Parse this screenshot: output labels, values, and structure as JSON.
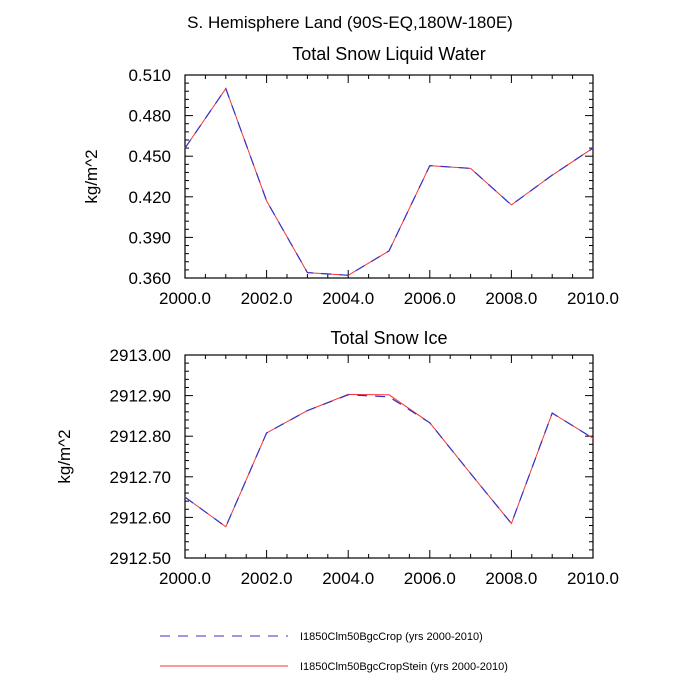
{
  "figure_title": "S. Hemisphere Land (90S-EQ,180W-180E)",
  "legend": {
    "entries": [
      {
        "label": "I1850Clm50BgcCrop (yrs 2000-2010)",
        "color": "#3333cc",
        "dash": "dashed"
      },
      {
        "label": "I1850Clm50BgcCropStein (yrs 2000-2010)",
        "color": "#ff3333",
        "dash": "solid"
      }
    ]
  },
  "chart_data": [
    {
      "type": "line",
      "title": "Total Snow Liquid Water",
      "xlabel": "",
      "ylabel": "kg/m^2",
      "xlim": [
        2000,
        2010
      ],
      "ylim": [
        0.36,
        0.51
      ],
      "xticks": [
        "2000.0",
        "2002.0",
        "2004.0",
        "2006.0",
        "2008.0",
        "2010.0"
      ],
      "yticks": [
        "0.360",
        "0.390",
        "0.420",
        "0.450",
        "0.480",
        "0.510"
      ],
      "x": [
        2000,
        2001,
        2002,
        2003,
        2004,
        2005,
        2006,
        2007,
        2008,
        2009,
        2010
      ],
      "series": [
        {
          "name": "I1850Clm50BgcCrop (yrs 2000-2010)",
          "values": [
            0.456,
            0.5,
            0.417,
            0.364,
            0.362,
            0.38,
            0.443,
            0.441,
            0.414,
            0.436,
            0.456
          ]
        },
        {
          "name": "I1850Clm50BgcCropStein (yrs 2000-2010)",
          "values": [
            0.456,
            0.5,
            0.417,
            0.364,
            0.362,
            0.38,
            0.443,
            0.441,
            0.414,
            0.436,
            0.456
          ]
        }
      ]
    },
    {
      "type": "line",
      "title": "Total Snow Ice",
      "xlabel": "",
      "ylabel": "kg/m^2",
      "xlim": [
        2000,
        2010
      ],
      "ylim": [
        2912.5,
        2913.0
      ],
      "xticks": [
        "2000.0",
        "2002.0",
        "2004.0",
        "2006.0",
        "2008.0",
        "2010.0"
      ],
      "yticks": [
        "2912.50",
        "2912.60",
        "2912.70",
        "2912.80",
        "2912.90",
        "2913.00"
      ],
      "x": [
        2000,
        2001,
        2002,
        2003,
        2004,
        2005,
        2006,
        2007,
        2008,
        2009,
        2010
      ],
      "series": [
        {
          "name": "I1850Clm50BgcCrop (yrs 2000-2010)",
          "values": [
            2912.65,
            2912.577,
            2912.808,
            2912.863,
            2912.902,
            2912.897,
            2912.833,
            2912.708,
            2912.585,
            2912.857,
            2912.795
          ]
        },
        {
          "name": "I1850Clm50BgcCropStein (yrs 2000-2010)",
          "values": [
            2912.65,
            2912.577,
            2912.808,
            2912.863,
            2912.903,
            2912.902,
            2912.833,
            2912.708,
            2912.585,
            2912.857,
            2912.795
          ]
        }
      ]
    }
  ]
}
